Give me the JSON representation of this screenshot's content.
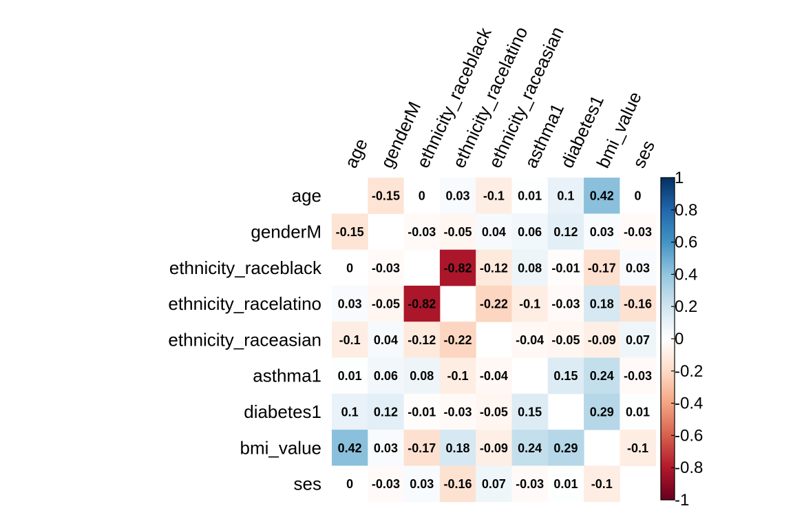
{
  "chart_data": {
    "type": "heatmap",
    "variables": [
      "age",
      "genderM",
      "ethnicity_raceblack",
      "ethnicity_racelatino",
      "ethnicity_raceasian",
      "asthma1",
      "diabetes1",
      "bmi_value",
      "ses"
    ],
    "matrix": [
      [
        null,
        -0.15,
        0,
        0.03,
        -0.1,
        0.01,
        0.1,
        0.42,
        0
      ],
      [
        -0.15,
        null,
        -0.03,
        -0.05,
        0.04,
        0.06,
        0.12,
        0.03,
        -0.03
      ],
      [
        0,
        -0.03,
        null,
        -0.82,
        -0.12,
        0.08,
        -0.01,
        -0.17,
        0.03
      ],
      [
        0.03,
        -0.05,
        -0.82,
        null,
        -0.22,
        -0.1,
        -0.03,
        0.18,
        -0.16
      ],
      [
        -0.1,
        0.04,
        -0.12,
        -0.22,
        null,
        -0.04,
        -0.05,
        -0.09,
        0.07
      ],
      [
        0.01,
        0.06,
        0.08,
        -0.1,
        -0.04,
        null,
        0.15,
        0.24,
        -0.03
      ],
      [
        0.1,
        0.12,
        -0.01,
        -0.03,
        -0.05,
        0.15,
        null,
        0.29,
        0.01
      ],
      [
        0.42,
        0.03,
        -0.17,
        0.18,
        -0.09,
        0.24,
        0.29,
        null,
        -0.1
      ],
      [
        0,
        -0.03,
        0.03,
        -0.16,
        0.07,
        -0.03,
        0.01,
        -0.1,
        null
      ]
    ],
    "color_scale": {
      "min": -1,
      "max": 1,
      "low_color": "#67001F",
      "mid_color": "#FFFFFF",
      "high_color": "#053061",
      "ticks": [
        1,
        0.8,
        0.6,
        0.4,
        0.2,
        0,
        -0.2,
        -0.4,
        -0.6,
        -0.8,
        -1
      ],
      "tick_labels": [
        "1",
        "0.8",
        "0.6",
        "0.4",
        "0.2",
        "0",
        "-0.2",
        "-0.4",
        "-0.6",
        "-0.8",
        "-1"
      ]
    },
    "diagonal_blank": true,
    "grid": false,
    "legend_position": "right"
  }
}
